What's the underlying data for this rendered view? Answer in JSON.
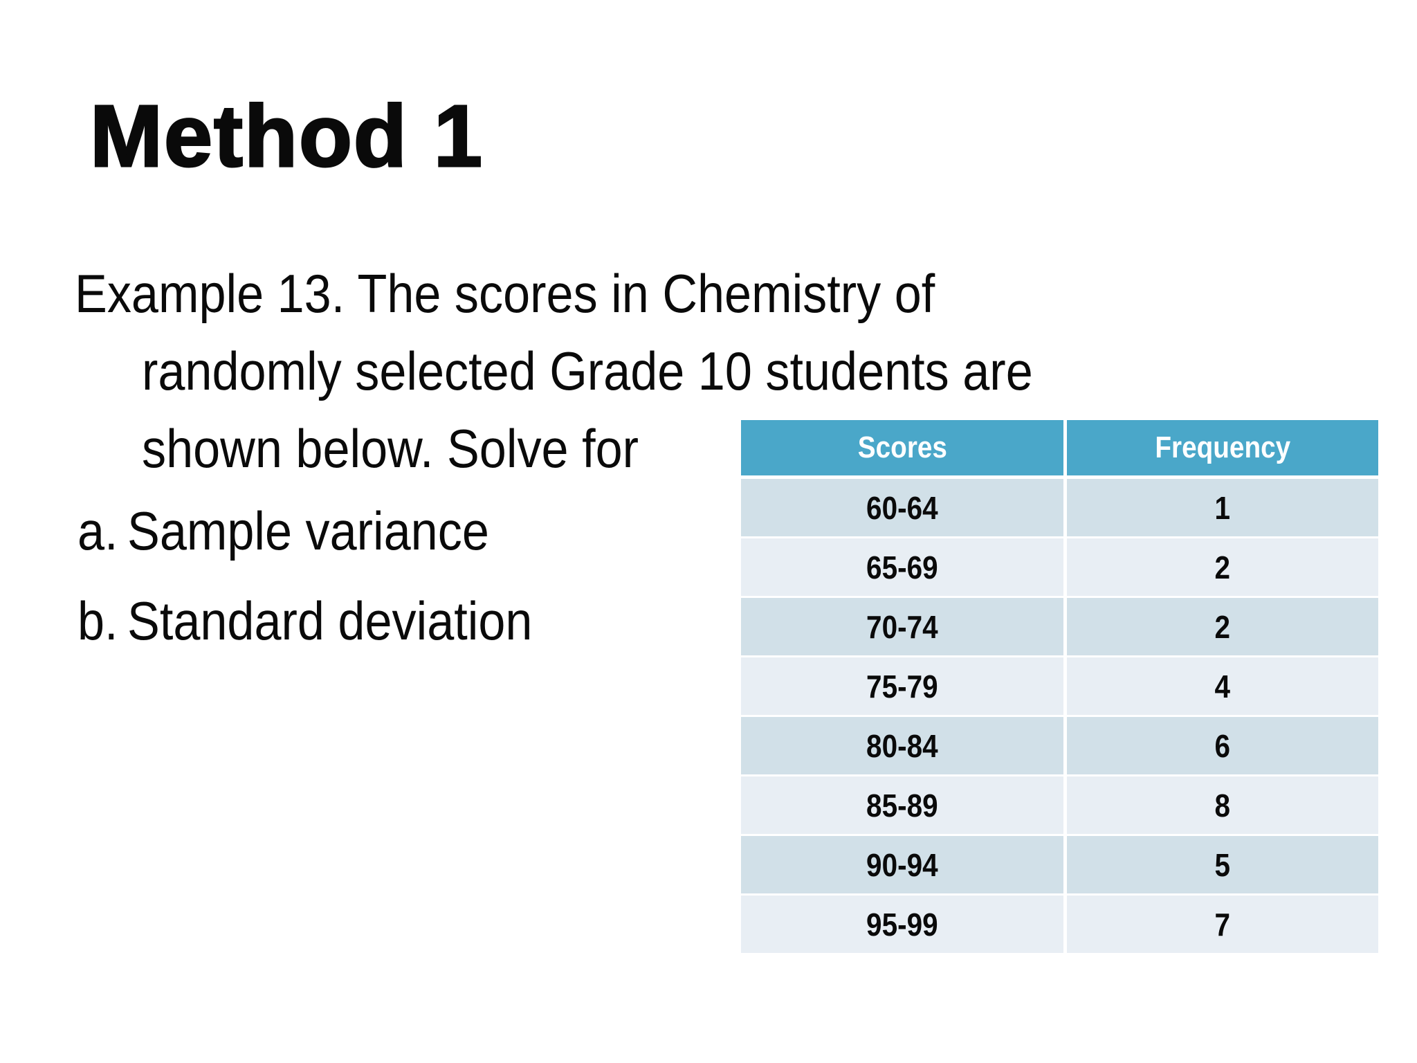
{
  "slide": {
    "title": "Method 1",
    "paragraph": {
      "lines": [
        "Example 13. The scores in Chemistry of",
        "randomly selected Grade 10 students are",
        "shown below. Solve for"
      ]
    },
    "list": [
      {
        "marker": "a.",
        "text": "Sample variance"
      },
      {
        "marker": "b.",
        "text": "Standard deviation"
      }
    ]
  },
  "table": {
    "headers": [
      "Scores",
      "Frequency"
    ],
    "rows": [
      {
        "score": "60-64",
        "freq": "1"
      },
      {
        "score": "65-69",
        "freq": "2"
      },
      {
        "score": "70-74",
        "freq": "2"
      },
      {
        "score": "75-79",
        "freq": "4"
      },
      {
        "score": "80-84",
        "freq": "6"
      },
      {
        "score": "85-89",
        "freq": "8"
      },
      {
        "score": "90-94",
        "freq": "5"
      },
      {
        "score": "95-99",
        "freq": "7"
      }
    ]
  },
  "colors": {
    "header_teal": "#4AA7C9",
    "header_text": "#FFFFFF",
    "row_dark": "#D1E0E8",
    "row_light": "#E8EEF4"
  }
}
